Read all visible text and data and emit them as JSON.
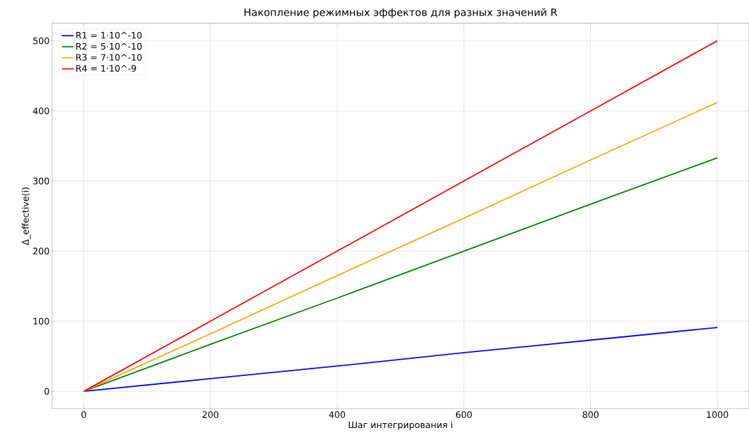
{
  "chart_data": {
    "type": "line",
    "title": "Накопление режимных эффектов для разных значений R",
    "xlabel": "Шаг интегрирования i",
    "ylabel": "Δ_effective(i)",
    "series": [
      {
        "name": "R1 = 1·10^-10",
        "color": "#0000ff",
        "x": [
          0,
          200,
          400,
          600,
          800,
          1000
        ],
        "values": [
          0,
          18,
          36,
          55,
          73,
          91
        ]
      },
      {
        "name": "R2 = 5·10^-10",
        "color": "#008000",
        "x": [
          0,
          200,
          400,
          600,
          800,
          1000
        ],
        "values": [
          0,
          67,
          133,
          200,
          267,
          333
        ]
      },
      {
        "name": "R3 = 7·10^-10",
        "color": "#ffa500",
        "x": [
          0,
          200,
          400,
          600,
          800,
          1000
        ],
        "values": [
          0,
          82,
          165,
          247,
          330,
          412
        ]
      },
      {
        "name": "R4 = 1·10^-9",
        "color": "#ff0000",
        "x": [
          0,
          200,
          400,
          600,
          800,
          1000
        ],
        "values": [
          0,
          100,
          200,
          300,
          400,
          500
        ]
      }
    ],
    "xlim": [
      -50,
      1050
    ],
    "ylim": [
      -25,
      525
    ],
    "xticks": [
      0,
      200,
      400,
      600,
      800,
      1000
    ],
    "yticks": [
      0,
      100,
      200,
      300,
      400,
      500
    ],
    "grid": true,
    "legend": "top left",
    "marker": "none",
    "line_style": "solid"
  }
}
